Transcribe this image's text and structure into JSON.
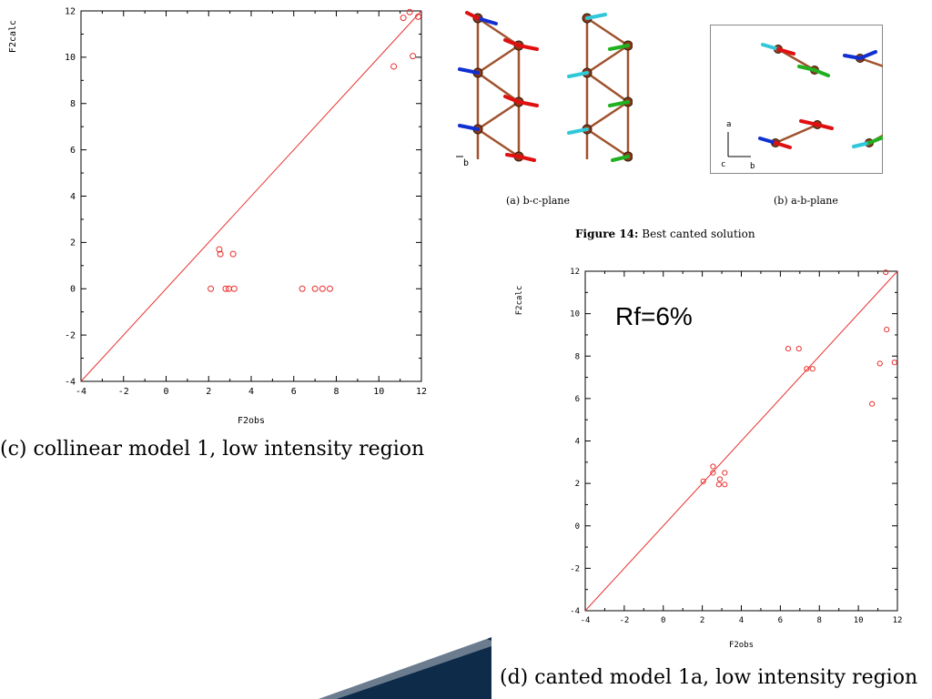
{
  "chart_data": [
    {
      "type": "scatter",
      "name": "collinear",
      "title": "",
      "xlabel": "F2obs",
      "ylabel": "F2calc",
      "xlim": [
        -4,
        12
      ],
      "ylim": [
        -4,
        12
      ],
      "xticks": [
        "-4",
        "-2",
        "0",
        "2",
        "4",
        "6",
        "8",
        "10",
        "12"
      ],
      "yticks": [
        "-4",
        "-2",
        "0",
        "2",
        "4",
        "6",
        "8",
        "10",
        "12"
      ],
      "grid": false,
      "reference_line": "y = x",
      "color": "#e8312e",
      "points": [
        {
          "x": 2.1,
          "y": 0.0
        },
        {
          "x": 2.8,
          "y": 0.0
        },
        {
          "x": 2.95,
          "y": 0.0
        },
        {
          "x": 3.2,
          "y": 0.0
        },
        {
          "x": 2.5,
          "y": 1.7
        },
        {
          "x": 2.55,
          "y": 1.5
        },
        {
          "x": 3.15,
          "y": 1.5
        },
        {
          "x": 6.4,
          "y": 0.0
        },
        {
          "x": 7.0,
          "y": 0.0
        },
        {
          "x": 7.35,
          "y": 0.0
        },
        {
          "x": 7.7,
          "y": 0.0
        },
        {
          "x": 10.7,
          "y": 9.6
        },
        {
          "x": 11.15,
          "y": 11.7
        },
        {
          "x": 11.45,
          "y": 11.95
        },
        {
          "x": 11.6,
          "y": 10.05
        },
        {
          "x": 11.85,
          "y": 11.75
        }
      ],
      "caption": "(c) collinear model 1, low intensity region"
    },
    {
      "type": "scatter",
      "name": "canted",
      "title": "",
      "xlabel": "F2obs",
      "ylabel": "F2calc",
      "annotation": "Rf=6%",
      "xlim": [
        -4,
        12
      ],
      "ylim": [
        -4,
        12
      ],
      "xticks": [
        "-4",
        "-2",
        "0",
        "2",
        "4",
        "6",
        "8",
        "10",
        "12"
      ],
      "yticks": [
        "-4",
        "-2",
        "0",
        "2",
        "4",
        "6",
        "8",
        "10",
        "12"
      ],
      "grid": false,
      "reference_line": "y = x",
      "color": "#e8312e",
      "points": [
        {
          "x": 2.05,
          "y": 2.1
        },
        {
          "x": 2.55,
          "y": 2.8
        },
        {
          "x": 2.55,
          "y": 2.5
        },
        {
          "x": 2.85,
          "y": 1.95
        },
        {
          "x": 2.9,
          "y": 2.2
        },
        {
          "x": 3.15,
          "y": 1.95
        },
        {
          "x": 3.15,
          "y": 2.5
        },
        {
          "x": 6.4,
          "y": 8.35
        },
        {
          "x": 6.95,
          "y": 8.35
        },
        {
          "x": 7.35,
          "y": 7.4
        },
        {
          "x": 7.65,
          "y": 7.4
        },
        {
          "x": 10.7,
          "y": 5.75
        },
        {
          "x": 11.1,
          "y": 7.65
        },
        {
          "x": 11.45,
          "y": 9.25
        },
        {
          "x": 11.4,
          "y": 11.95
        },
        {
          "x": 11.85,
          "y": 7.7
        }
      ],
      "caption": "(d) canted model 1a, low intensity region"
    }
  ],
  "structure": {
    "caption_a": "(a) b-c-plane",
    "caption_b": "(b) a-b-plane",
    "figure_label": "Figure 14:",
    "figure_text": "Best canted solution",
    "axis_a": "a",
    "axis_b": "b",
    "axis_c": "c",
    "axis_b_left": "b",
    "colors": {
      "atom": "#8b3a1a",
      "bond": "#a0522d",
      "red": "#e01010",
      "blue": "#1030d0",
      "cyan": "#30c8d8",
      "green": "#20b020"
    }
  }
}
